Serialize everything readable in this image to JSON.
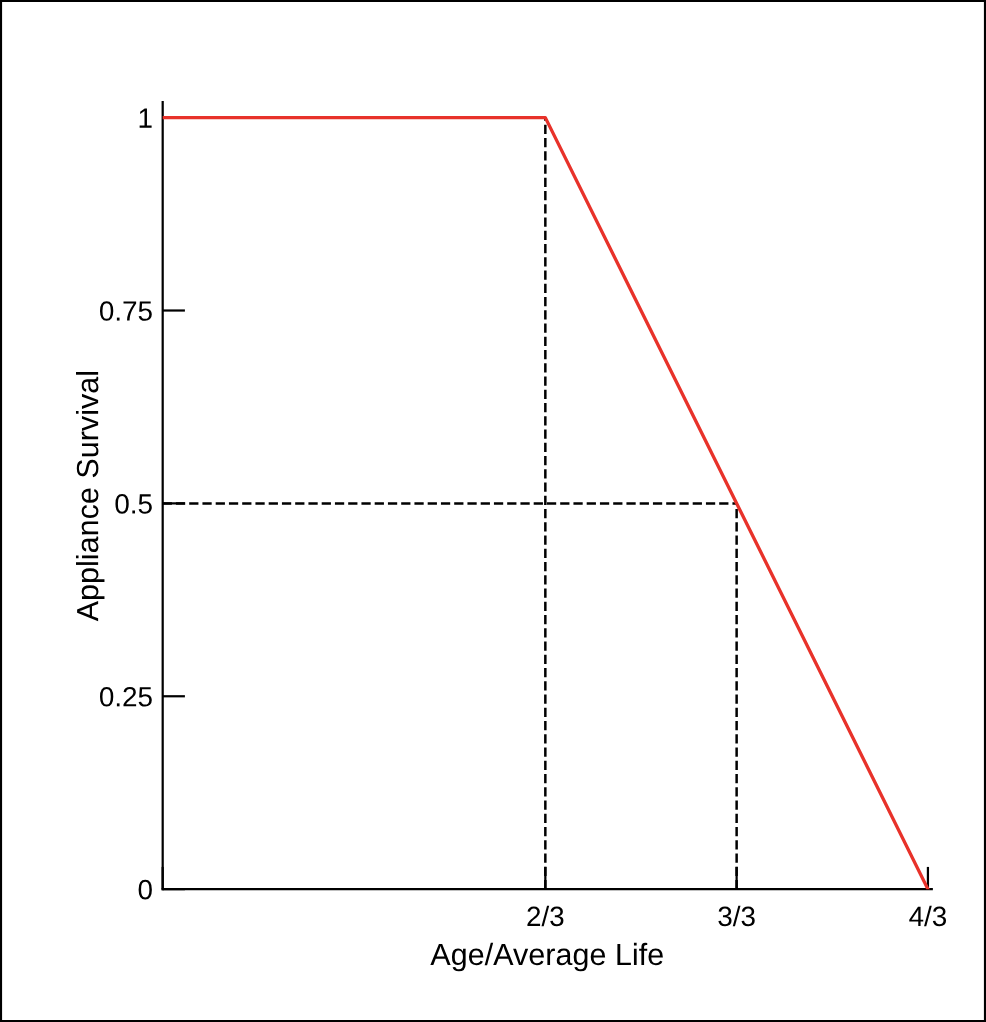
{
  "chart_data": {
    "type": "line",
    "xlabel": "Age/Average Life",
    "ylabel": "Appliance Survival",
    "x": [
      0,
      0.6667,
      1.3333
    ],
    "series": [
      {
        "color": "#e8322a",
        "values": [
          1,
          1,
          0
        ]
      }
    ],
    "xlim": [
      0,
      1.34
    ],
    "ylim": [
      0,
      1.02
    ],
    "xticks": [
      {
        "value": 0,
        "label": null
      },
      {
        "value": 0.6667,
        "label": "2/3"
      },
      {
        "value": 1,
        "label": "3/3"
      },
      {
        "value": 1.3333,
        "label": "4/3"
      }
    ],
    "yticks": [
      0,
      0.25,
      0.5,
      0.75,
      1
    ],
    "ref_lines": [
      {
        "axis": "x",
        "value": 0.6667,
        "color": "#000000",
        "line_style": "dashed"
      },
      {
        "axis": "x",
        "value": 1,
        "color": "#000000",
        "line_style": "dashed"
      },
      {
        "axis": "y",
        "value": 0.5,
        "color": "#000000",
        "line_style": "dashed"
      }
    ],
    "grid": false,
    "legend": false,
    "marker": "none",
    "line_style": "solid"
  }
}
